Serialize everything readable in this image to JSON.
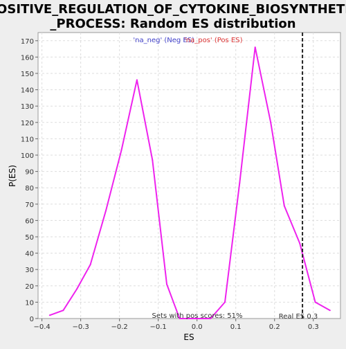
{
  "chart_data": {
    "type": "line",
    "title_line1": "POSITIVE_REGULATION_OF_CYTOKINE_BIOSYNTHETIC",
    "title_line2": "_PROCESS: Random ES distribution",
    "xlabel": "ES",
    "ylabel": "P(ES)",
    "xlim": [
      -0.41,
      0.37
    ],
    "ylim": [
      0,
      175
    ],
    "xticks": [
      -0.4,
      -0.3,
      -0.2,
      -0.1,
      0.0,
      0.1,
      0.2,
      0.3
    ],
    "xtick_labels": [
      "−0.4",
      "−0.3",
      "−0.2",
      "−0.1",
      "0.0",
      "0.1",
      "0.2",
      "0.3"
    ],
    "yticks": [
      0,
      10,
      20,
      30,
      40,
      50,
      60,
      70,
      80,
      90,
      100,
      110,
      120,
      130,
      140,
      150,
      160,
      170
    ],
    "grid": true,
    "legend": [
      {
        "label": "'na_neg' (Neg ES)",
        "color": "#4444cc"
      },
      {
        "label": "'na_pos' (Pos ES)",
        "color": "#dd3333"
      }
    ],
    "series": [
      {
        "color": "#ee22ee",
        "x": [
          -0.38,
          -0.345,
          -0.31,
          -0.275,
          -0.235,
          -0.195,
          -0.155,
          -0.115,
          -0.078,
          -0.045,
          -0.01,
          0.035,
          0.072,
          0.11,
          0.15,
          0.19,
          0.225,
          0.265,
          0.305,
          0.343
        ],
        "y": [
          2,
          5,
          18,
          33,
          66,
          103,
          146,
          97,
          21,
          0,
          0,
          0,
          10,
          83,
          166,
          120,
          69,
          46,
          10,
          5
        ]
      }
    ],
    "annotations": {
      "real_es_label": "Real ES 0.3",
      "real_es_value": 0.272,
      "pos_scores_label": "Sets with pos scores: 51%"
    }
  }
}
